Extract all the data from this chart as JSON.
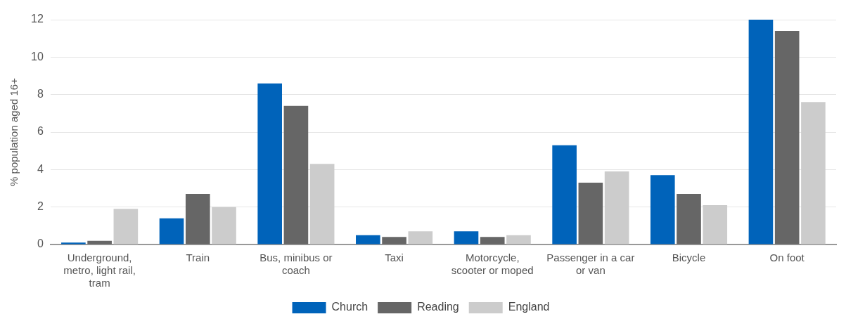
{
  "chart_data": {
    "type": "bar",
    "ylabel": "% population aged 16+",
    "categories": [
      "Underground, metro, light rail, tram",
      "Train",
      "Bus, minibus or coach",
      "Taxi",
      "Motorcycle, scooter or moped",
      "Passenger in a car or van",
      "Bicycle",
      "On foot"
    ],
    "series": [
      {
        "name": "Church",
        "color": "#0063ba",
        "values": [
          0.1,
          1.4,
          8.6,
          0.5,
          0.7,
          5.3,
          3.7,
          12.0
        ]
      },
      {
        "name": "Reading",
        "color": "#666666",
        "values": [
          0.2,
          2.7,
          7.4,
          0.4,
          0.4,
          3.3,
          2.7,
          11.4
        ]
      },
      {
        "name": "England",
        "color": "#cccccc",
        "values": [
          1.9,
          2.0,
          4.3,
          0.7,
          0.5,
          3.9,
          2.1,
          7.6
        ]
      }
    ],
    "ylim": [
      0,
      12
    ],
    "yticks": [
      0,
      2,
      4,
      6,
      8,
      10,
      12
    ],
    "grid": "y",
    "legend": "bottom"
  }
}
